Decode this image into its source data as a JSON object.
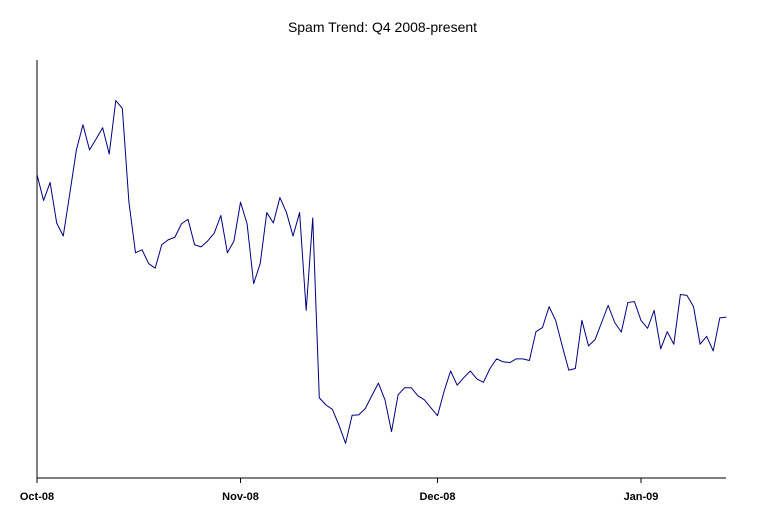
{
  "chart_data": {
    "type": "line",
    "title": "Spam Trend: Q4 2008-present",
    "xlabel": "",
    "ylabel": "",
    "x_axis_type": "date",
    "x_range": [
      "2008-10-01",
      "2009-01-14"
    ],
    "x_ticks": [
      {
        "date": "2008-10-01",
        "label": "Oct-08"
      },
      {
        "date": "2008-11-01",
        "label": "Nov-08"
      },
      {
        "date": "2008-12-01",
        "label": "Dec-08"
      },
      {
        "date": "2009-01-01",
        "label": "Jan-09"
      }
    ],
    "y_axis_labels_shown": false,
    "ylim": [
      0,
      100
    ],
    "grid": false,
    "legend": "none",
    "line_color": "#000080",
    "series": [
      {
        "points": [
          [
            "2008-10-01",
            72.6
          ],
          [
            "2008-10-02",
            66.4
          ],
          [
            "2008-10-03",
            70.7
          ],
          [
            "2008-10-04",
            61.0
          ],
          [
            "2008-10-05",
            57.9
          ],
          [
            "2008-10-06",
            68.1
          ],
          [
            "2008-10-07",
            78.5
          ],
          [
            "2008-10-08",
            84.5
          ],
          [
            "2008-10-09",
            78.5
          ],
          [
            "2008-10-10",
            81.1
          ],
          [
            "2008-10-11",
            83.8
          ],
          [
            "2008-10-12",
            77.5
          ],
          [
            "2008-10-13",
            90.3
          ],
          [
            "2008-10-14",
            88.4
          ],
          [
            "2008-10-15",
            66.0
          ],
          [
            "2008-10-16",
            53.9
          ],
          [
            "2008-10-17",
            54.6
          ],
          [
            "2008-10-18",
            51.3
          ],
          [
            "2008-10-19",
            50.2
          ],
          [
            "2008-10-20",
            55.8
          ],
          [
            "2008-10-21",
            57.0
          ],
          [
            "2008-10-22",
            57.6
          ],
          [
            "2008-10-23",
            60.8
          ],
          [
            "2008-10-24",
            61.9
          ],
          [
            "2008-10-25",
            55.8
          ],
          [
            "2008-10-26",
            55.3
          ],
          [
            "2008-10-27",
            56.7
          ],
          [
            "2008-10-28",
            58.6
          ],
          [
            "2008-10-29",
            62.8
          ],
          [
            "2008-10-30",
            53.9
          ],
          [
            "2008-10-31",
            56.7
          ],
          [
            "2008-11-01",
            66.0
          ],
          [
            "2008-11-02",
            60.8
          ],
          [
            "2008-11-03",
            46.5
          ],
          [
            "2008-11-04",
            51.3
          ],
          [
            "2008-11-05",
            63.5
          ],
          [
            "2008-11-06",
            61.0
          ],
          [
            "2008-11-07",
            67.1
          ],
          [
            "2008-11-08",
            63.5
          ],
          [
            "2008-11-09",
            57.9
          ],
          [
            "2008-11-10",
            63.5
          ],
          [
            "2008-11-11",
            40.1
          ],
          [
            "2008-11-12",
            62.2
          ],
          [
            "2008-11-13",
            19.2
          ],
          [
            "2008-11-14",
            17.5
          ],
          [
            "2008-11-15",
            16.4
          ],
          [
            "2008-11-16",
            12.6
          ],
          [
            "2008-11-17",
            8.3
          ],
          [
            "2008-11-18",
            15.0
          ],
          [
            "2008-11-19",
            15.1
          ],
          [
            "2008-11-20",
            16.6
          ],
          [
            "2008-11-21",
            19.7
          ],
          [
            "2008-11-22",
            22.7
          ],
          [
            "2008-11-23",
            18.7
          ],
          [
            "2008-11-24",
            11.1
          ],
          [
            "2008-11-25",
            19.9
          ],
          [
            "2008-11-26",
            21.6
          ],
          [
            "2008-11-27",
            21.6
          ],
          [
            "2008-11-28",
            19.7
          ],
          [
            "2008-11-29",
            18.7
          ],
          [
            "2008-11-30",
            16.8
          ],
          [
            "2008-12-01",
            14.9
          ],
          [
            "2008-12-02",
            20.7
          ],
          [
            "2008-12-03",
            25.6
          ],
          [
            "2008-12-04",
            22.2
          ],
          [
            "2008-12-05",
            24.0
          ],
          [
            "2008-12-06",
            25.6
          ],
          [
            "2008-12-07",
            23.7
          ],
          [
            "2008-12-08",
            22.9
          ],
          [
            "2008-12-09",
            26.2
          ],
          [
            "2008-12-10",
            28.5
          ],
          [
            "2008-12-11",
            27.8
          ],
          [
            "2008-12-12",
            27.6
          ],
          [
            "2008-12-13",
            28.5
          ],
          [
            "2008-12-14",
            28.5
          ],
          [
            "2008-12-15",
            28.1
          ],
          [
            "2008-12-16",
            35.0
          ],
          [
            "2008-12-17",
            36.0
          ],
          [
            "2008-12-18",
            41.0
          ],
          [
            "2008-12-19",
            37.7
          ],
          [
            "2008-12-20",
            31.6
          ],
          [
            "2008-12-21",
            25.8
          ],
          [
            "2008-12-22",
            26.2
          ],
          [
            "2008-12-23",
            37.7
          ],
          [
            "2008-12-24",
            31.6
          ],
          [
            "2008-12-25",
            33.1
          ],
          [
            "2008-12-26",
            37.2
          ],
          [
            "2008-12-27",
            41.3
          ],
          [
            "2008-12-28",
            37.2
          ],
          [
            "2008-12-29",
            34.9
          ],
          [
            "2008-12-30",
            42.0
          ],
          [
            "2008-12-31",
            42.2
          ],
          [
            "2009-01-01",
            37.7
          ],
          [
            "2009-01-02",
            35.8
          ],
          [
            "2009-01-03",
            40.1
          ],
          [
            "2009-01-04",
            30.9
          ],
          [
            "2009-01-05",
            35.0
          ],
          [
            "2009-01-06",
            32.0
          ],
          [
            "2009-01-07",
            43.9
          ],
          [
            "2009-01-08",
            43.7
          ],
          [
            "2009-01-09",
            41.0
          ],
          [
            "2009-01-10",
            32.0
          ],
          [
            "2009-01-11",
            33.9
          ],
          [
            "2009-01-12",
            30.4
          ],
          [
            "2009-01-13",
            38.3
          ],
          [
            "2009-01-14",
            38.5
          ]
        ]
      }
    ]
  }
}
